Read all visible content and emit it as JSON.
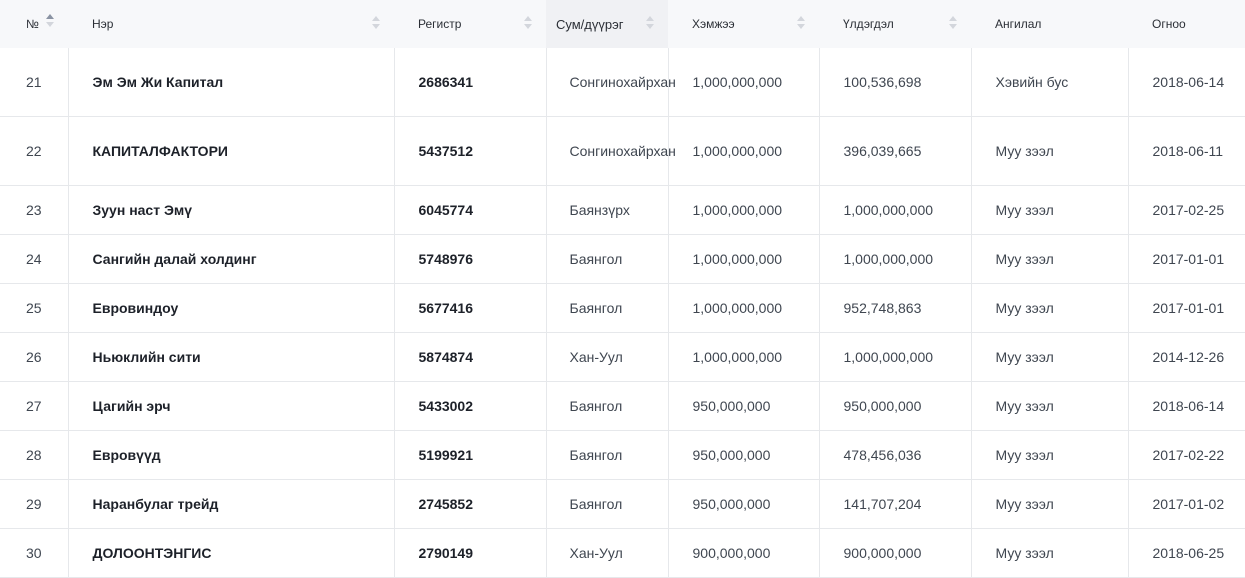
{
  "table": {
    "headers": {
      "no": "№",
      "name": "Нэр",
      "register": "Регистр",
      "district": "Сум/дүүрэг",
      "size": "Хэмжээ",
      "balance": "Үлдэгдэл",
      "category": "Ангилал",
      "date": "Огноо"
    },
    "sort": {
      "column": "no",
      "direction": "ascending"
    },
    "rows": [
      {
        "no": "21",
        "name": "Эм Эм Жи Капитал",
        "register": "2686341",
        "district": "Сонгинохайрхан",
        "size": "1,000,000,000",
        "balance": "100,536,698",
        "category": "Хэвийн бус",
        "date": "2018-06-14"
      },
      {
        "no": "22",
        "name": "КАПИТАЛФАКТОРИ",
        "register": "5437512",
        "district": "Сонгинохайрхан",
        "size": "1,000,000,000",
        "balance": "396,039,665",
        "category": "Муу зээл",
        "date": "2018-06-11"
      },
      {
        "no": "23",
        "name": "Зуун наст Эмү",
        "register": "6045774",
        "district": "Баянзүрх",
        "size": "1,000,000,000",
        "balance": "1,000,000,000",
        "category": "Муу зээл",
        "date": "2017-02-25"
      },
      {
        "no": "24",
        "name": "Сангийн далай холдинг",
        "register": "5748976",
        "district": "Баянгол",
        "size": "1,000,000,000",
        "balance": "1,000,000,000",
        "category": "Муу зээл",
        "date": "2017-01-01"
      },
      {
        "no": "25",
        "name": "Евровиндоу",
        "register": "5677416",
        "district": "Баянгол",
        "size": "1,000,000,000",
        "balance": "952,748,863",
        "category": "Муу зээл",
        "date": "2017-01-01"
      },
      {
        "no": "26",
        "name": "Ньюклийн сити",
        "register": "5874874",
        "district": "Хан-Уул",
        "size": "1,000,000,000",
        "balance": "1,000,000,000",
        "category": "Муу зээл",
        "date": "2014-12-26"
      },
      {
        "no": "27",
        "name": "Цагийн эрч",
        "register": "5433002",
        "district": "Баянгол",
        "size": "950,000,000",
        "balance": "950,000,000",
        "category": "Муу зээл",
        "date": "2018-06-14"
      },
      {
        "no": "28",
        "name": "Евровүүд",
        "register": "5199921",
        "district": "Баянгол",
        "size": "950,000,000",
        "balance": "478,456,036",
        "category": "Муу зээл",
        "date": "2017-02-22"
      },
      {
        "no": "29",
        "name": "Наранбулаг трейд",
        "register": "2745852",
        "district": "Баянгол",
        "size": "950,000,000",
        "balance": "141,707,204",
        "category": "Муу зээл",
        "date": "2017-01-02"
      },
      {
        "no": "30",
        "name": "ДОЛООНТЭНГИС",
        "register": "2790149",
        "district": "Хан-Уул",
        "size": "900,000,000",
        "balance": "900,000,000",
        "category": "Муу зээл",
        "date": "2018-06-25"
      }
    ]
  }
}
